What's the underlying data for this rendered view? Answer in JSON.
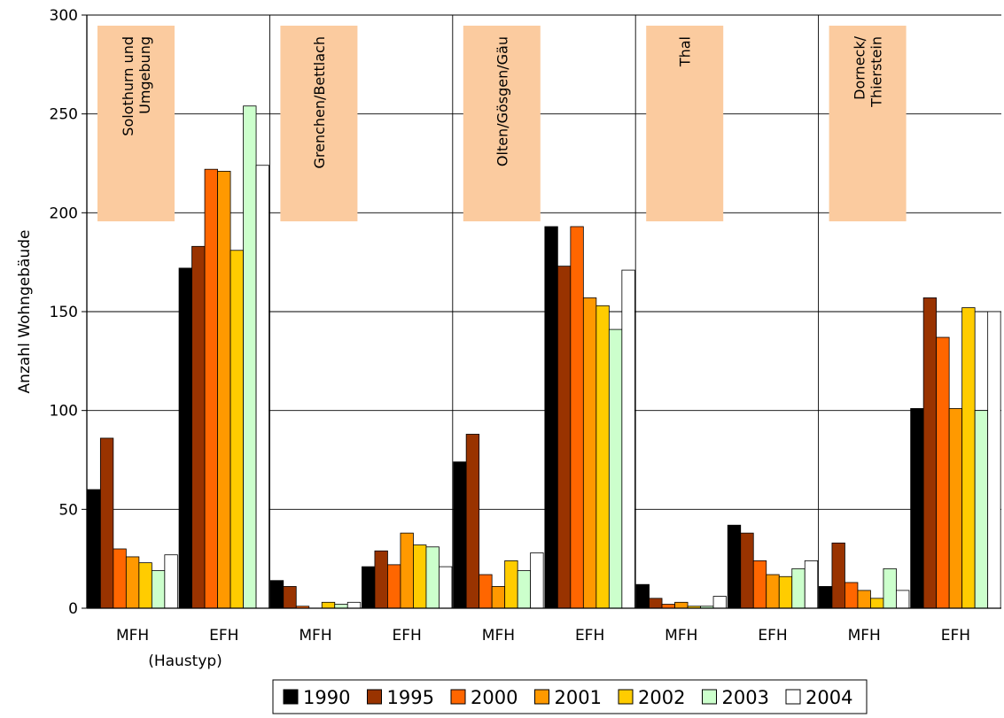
{
  "chart_data": {
    "type": "bar",
    "title": "",
    "ylabel": "Anzahl Wohngebäude",
    "xlabel": "(Haustyp)",
    "ylim": [
      0,
      300
    ],
    "yticks": [
      0,
      50,
      100,
      150,
      200,
      250,
      300
    ],
    "grid": true,
    "legend_position": "bottom",
    "categories": [
      "MFH",
      "EFH",
      "MFH",
      "EFH",
      "MFH",
      "EFH",
      "MFH",
      "EFH",
      "MFH",
      "EFH"
    ],
    "regions": [
      "Solothurn und Umgebung",
      "Grenchen/Bettlach",
      "Olten/Gösgen/Gäu",
      "Thal",
      "Dorneck/ Thierstein"
    ],
    "region_label_color": "#fbcb9f",
    "series": [
      {
        "name": "1990",
        "color": "#000000",
        "values": [
          60,
          172,
          14,
          21,
          74,
          193,
          12,
          42,
          11,
          101
        ]
      },
      {
        "name": "1995",
        "color": "#993300",
        "values": [
          86,
          183,
          11,
          29,
          88,
          173,
          5,
          38,
          33,
          157
        ]
      },
      {
        "name": "2000",
        "color": "#ff6600",
        "values": [
          30,
          222,
          1,
          22,
          17,
          193,
          2,
          24,
          13,
          137
        ]
      },
      {
        "name": "2001",
        "color": "#ff9900",
        "values": [
          26,
          221,
          0,
          38,
          11,
          157,
          3,
          17,
          9,
          101
        ]
      },
      {
        "name": "2002",
        "color": "#ffcc00",
        "values": [
          23,
          181,
          3,
          32,
          24,
          153,
          1,
          16,
          5,
          152
        ]
      },
      {
        "name": "2003",
        "color": "#ccffcc",
        "values": [
          19,
          254,
          2,
          31,
          19,
          141,
          1,
          20,
          20,
          100
        ]
      },
      {
        "name": "2004",
        "color": "#ffffff",
        "values": [
          27,
          224,
          3,
          21,
          28,
          171,
          6,
          24,
          9,
          150
        ]
      }
    ]
  }
}
